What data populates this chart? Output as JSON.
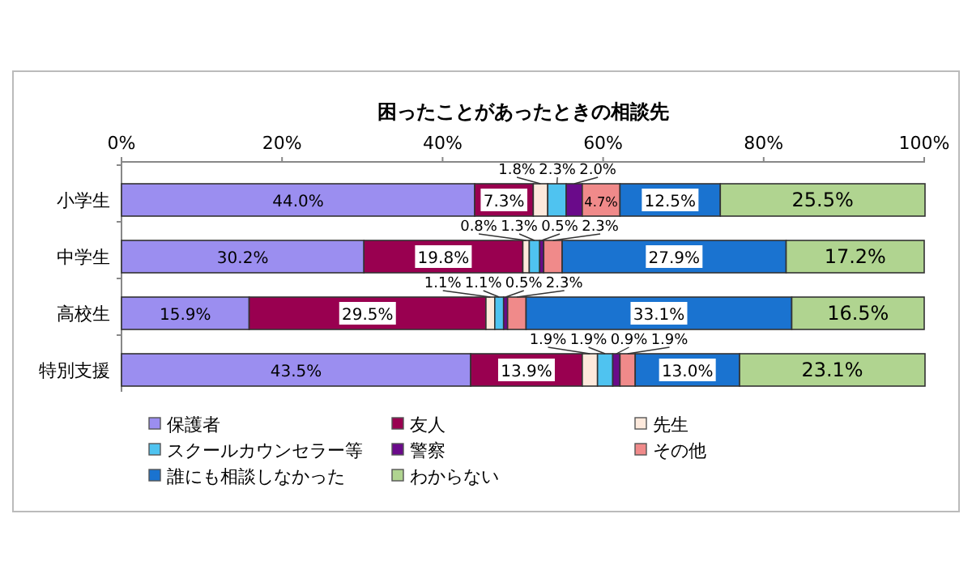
{
  "chart_data": {
    "type": "bar",
    "orientation": "horizontal",
    "stacked": true,
    "title": "困ったことがあったときの相談先",
    "categories": [
      "小学生",
      "中学生",
      "高校生",
      "特別支援"
    ],
    "series": [
      {
        "name": "保護者",
        "color": "#9b8ef0",
        "values": [
          44.0,
          30.2,
          15.9,
          43.5
        ],
        "value_labels": [
          "44.0%",
          "30.2%",
          "15.9%",
          "43.5%"
        ]
      },
      {
        "name": "友人",
        "color": "#990050",
        "values": [
          7.3,
          19.8,
          29.5,
          13.9
        ],
        "value_labels": [
          "7.3%",
          "19.8%",
          "29.5%",
          "13.9%"
        ]
      },
      {
        "name": "先生",
        "color": "#fde9dc",
        "values": [
          1.8,
          0.8,
          1.1,
          1.9
        ],
        "value_labels": [
          "1.8%",
          "0.8%",
          "1.1%",
          "1.9%"
        ]
      },
      {
        "name": "スクールカウンセラー等",
        "color": "#4fc3f0",
        "values": [
          2.3,
          1.3,
          1.1,
          1.9
        ],
        "value_labels": [
          "2.3%",
          "1.3%",
          "1.1%",
          "1.9%"
        ]
      },
      {
        "name": "警察",
        "color": "#6a0a8a",
        "values": [
          2.0,
          0.5,
          0.5,
          0.9
        ],
        "value_labels": [
          "2.0%",
          "0.5%",
          "0.5%",
          "0.9%"
        ]
      },
      {
        "name": "その他",
        "color": "#f08a8a",
        "values": [
          4.7,
          2.3,
          2.3,
          1.9
        ],
        "value_labels": [
          "4.7%",
          "2.3%",
          "2.3%",
          "1.9%"
        ]
      },
      {
        "name": "誰にも相談しなかった",
        "color": "#1a73d0",
        "values": [
          12.5,
          27.9,
          33.1,
          13.0
        ],
        "value_labels": [
          "12.5%",
          "27.9%",
          "33.1%",
          "13.0%"
        ]
      },
      {
        "name": "わからない",
        "color": "#b0d490",
        "values": [
          25.5,
          17.2,
          16.5,
          23.1
        ],
        "value_labels": [
          "25.5%",
          "17.2%",
          "16.5%",
          "23.1%"
        ]
      }
    ],
    "xlim": [
      0,
      100.1
    ],
    "xticks": [
      {
        "value": 0,
        "label": "0%"
      },
      {
        "value": 20,
        "label": "20%"
      },
      {
        "value": 40,
        "label": "40%"
      },
      {
        "value": 60,
        "label": "60%"
      },
      {
        "value": 80,
        "label": "80%"
      },
      {
        "value": 100,
        "label": "100%"
      }
    ],
    "legend": "bottom",
    "grid": false
  }
}
